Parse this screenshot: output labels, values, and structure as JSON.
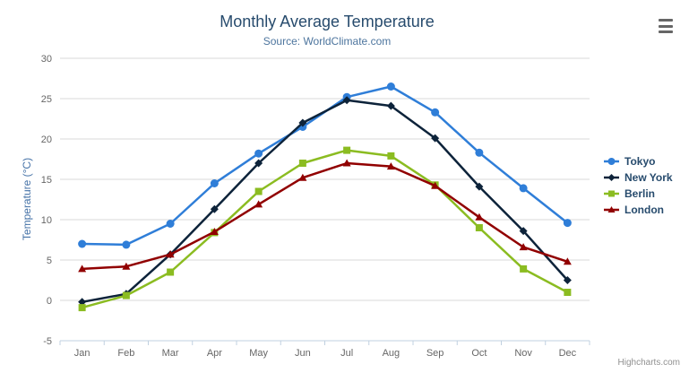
{
  "chart": {
    "credits": "Highcharts.com",
    "menu_icon": "hamburger-icon"
  },
  "colors": {
    "title": "#274b6d",
    "subtitle": "#4d759e",
    "y_axis_title": "#4572a7",
    "axis_labels": "#666666",
    "gridline": "#d8d8d8",
    "x_axis_line": "#c0d0e0",
    "legend_text": "#274b6d",
    "credits_text": "#909090",
    "menu_icon": "#666666"
  },
  "chart_data": {
    "type": "line",
    "title": "Monthly Average Temperature",
    "subtitle": "Source: WorldClimate.com",
    "xlabel": "",
    "ylabel": "Temperature (°C)",
    "ylim": [
      -5,
      30
    ],
    "yticks": [
      -5,
      0,
      5,
      10,
      15,
      20,
      25,
      30
    ],
    "grid": true,
    "legend_position": "right",
    "categories": [
      "Jan",
      "Feb",
      "Mar",
      "Apr",
      "May",
      "Jun",
      "Jul",
      "Aug",
      "Sep",
      "Oct",
      "Nov",
      "Dec"
    ],
    "series": [
      {
        "name": "Tokyo",
        "color": "#2f7ed8",
        "marker": "circle",
        "values": [
          7.0,
          6.9,
          9.5,
          14.5,
          18.2,
          21.5,
          25.2,
          26.5,
          23.3,
          18.3,
          13.9,
          9.6
        ]
      },
      {
        "name": "New York",
        "color": "#0d233a",
        "marker": "diamond",
        "values": [
          -0.2,
          0.8,
          5.7,
          11.3,
          17.0,
          22.0,
          24.8,
          24.1,
          20.1,
          14.1,
          8.6,
          2.5
        ]
      },
      {
        "name": "Berlin",
        "color": "#8bbc21",
        "marker": "square",
        "values": [
          -0.9,
          0.6,
          3.5,
          8.4,
          13.5,
          17.0,
          18.6,
          17.9,
          14.3,
          9.0,
          3.9,
          1.0
        ]
      },
      {
        "name": "London",
        "color": "#910000",
        "marker": "triangle",
        "values": [
          3.9,
          4.2,
          5.7,
          8.5,
          11.9,
          15.2,
          17.0,
          16.6,
          14.2,
          10.3,
          6.6,
          4.8
        ]
      }
    ]
  }
}
